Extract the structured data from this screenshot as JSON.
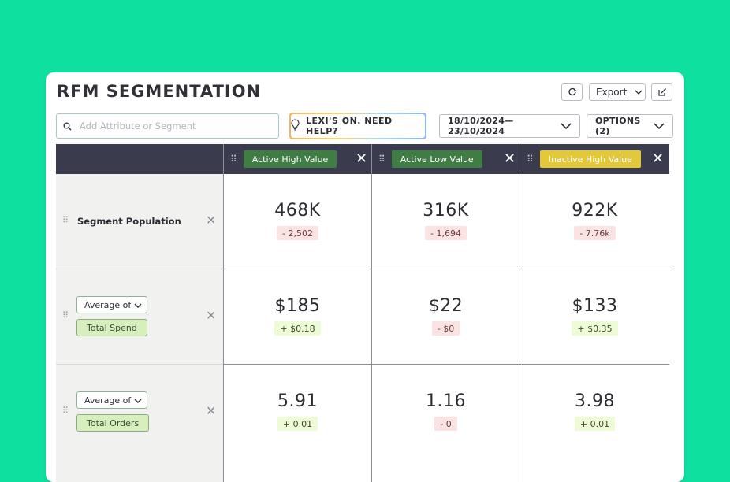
{
  "app": {
    "title": "RFM SEGMENTATION"
  },
  "toolbar": {
    "refresh_icon": "refresh-icon",
    "export_label": "Export",
    "edit_icon": "edit-icon"
  },
  "search": {
    "placeholder": "Add Attribute or Segment",
    "value": ""
  },
  "lexi": {
    "label": "LEXI'S ON. NEED HELP?",
    "icon": "lightbulb-icon"
  },
  "date_range": {
    "label": "18/10/2024—23/10/2024"
  },
  "options": {
    "label": "OPTIONS (2)"
  },
  "columns": [
    {
      "label": "Active High Value",
      "bg": "#3f7d44",
      "fg": "#ffffff"
    },
    {
      "label": "Active Low Value",
      "bg": "#3f7d44",
      "fg": "#ffffff"
    },
    {
      "label": "Inactive High Value",
      "bg": "#e3c93a",
      "fg": "#ffffff"
    }
  ],
  "rows": [
    {
      "label": "Segment Population",
      "cells": [
        {
          "value": "468K",
          "delta": "- 2,502",
          "trend": "neg"
        },
        {
          "value": "316K",
          "delta": "- 1,694",
          "trend": "neg"
        },
        {
          "value": "922K",
          "delta": "- 7.76k",
          "trend": "neg"
        }
      ]
    },
    {
      "aggregate": "Average of",
      "attribute": "Total Spend",
      "cells": [
        {
          "value": "$185",
          "delta": "+ $0.18",
          "trend": "pos"
        },
        {
          "value": "$22",
          "delta": "- $0",
          "trend": "neg"
        },
        {
          "value": "$133",
          "delta": "+ $0.35",
          "trend": "pos"
        }
      ]
    },
    {
      "aggregate": "Average of",
      "attribute": "Total Orders",
      "cells": [
        {
          "value": "5.91",
          "delta": "+ 0.01",
          "trend": "pos"
        },
        {
          "value": "1.16",
          "delta": "- 0",
          "trend": "neg"
        },
        {
          "value": "3.98",
          "delta": "+ 0.01",
          "trend": "pos"
        }
      ]
    }
  ],
  "colors": {
    "background": "#0ee0a0",
    "header": "#3a3c4e",
    "label_bg": "#f1f1ef"
  }
}
